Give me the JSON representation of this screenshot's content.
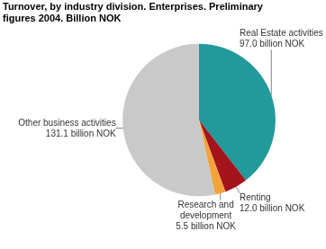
{
  "chart_data": {
    "type": "pie",
    "title": [
      "Turnover, by industry division. Enterprises. Preliminary",
      "figures 2004. Billion NOK"
    ],
    "categories": [
      "Real Estate activities",
      "Renting",
      "Research and development",
      "Other business activities"
    ],
    "values": [
      97.0,
      12.0,
      5.5,
      131.1
    ],
    "value_labels": [
      "97.0 billion NOK",
      "12.0 billion NOK",
      "5.5 billion NOK",
      "131.1 billion NOK"
    ],
    "colors": [
      "#22999a",
      "#a5131c",
      "#f2a33a",
      "#c9c9c9"
    ],
    "data_labels": true
  }
}
